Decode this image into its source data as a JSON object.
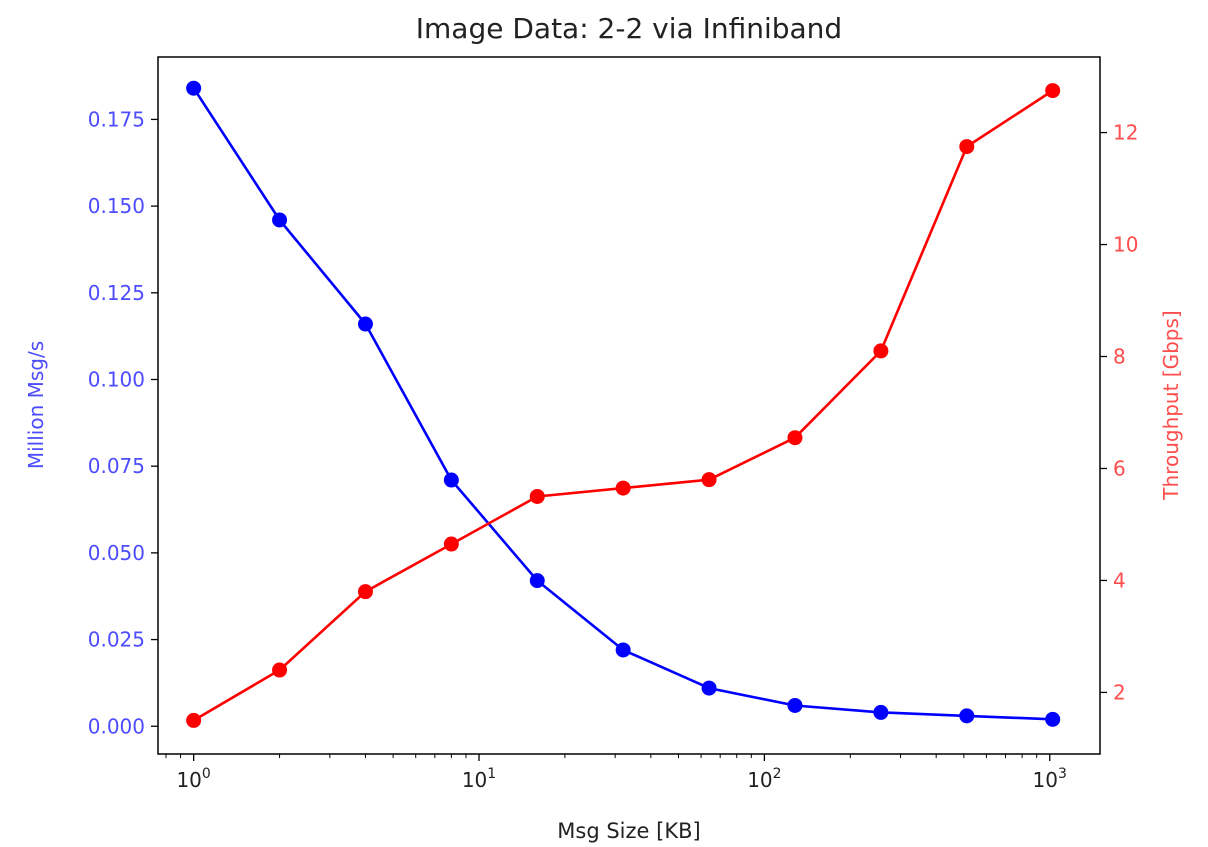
{
  "chart_data": {
    "type": "line",
    "title": "Image Data: 2-2 via Infiniband",
    "xlabel": "Msg Size [KB]",
    "ylabel_left": "Million Msg/s",
    "ylabel_right": "Throughput [Gbps]",
    "x_scale": "log",
    "x": [
      1,
      2,
      4,
      8,
      16,
      32,
      64,
      128,
      256,
      512,
      1024
    ],
    "xlim": [
      0.75,
      1500
    ],
    "x_tick_labels": [
      {
        "value": 1,
        "base": "10",
        "exp": "0"
      },
      {
        "value": 10,
        "base": "10",
        "exp": "1"
      },
      {
        "value": 100,
        "base": "10",
        "exp": "2"
      },
      {
        "value": 1000,
        "base": "10",
        "exp": "3"
      }
    ],
    "ylim_left": [
      -0.008,
      0.193
    ],
    "yticks_left": [
      "0.000",
      "0.025",
      "0.050",
      "0.075",
      "0.100",
      "0.125",
      "0.150",
      "0.175"
    ],
    "ylim_right": [
      0.9,
      13.35
    ],
    "yticks_right": [
      "2",
      "4",
      "6",
      "8",
      "10",
      "12"
    ],
    "grid": false,
    "series": [
      {
        "axis": "left",
        "color": "#0000ff",
        "values": [
          0.184,
          0.146,
          0.116,
          0.071,
          0.042,
          0.022,
          0.011,
          0.006,
          0.004,
          0.003,
          0.002
        ]
      },
      {
        "axis": "right",
        "color": "#ff0000",
        "values": [
          1.5,
          2.4,
          3.8,
          4.65,
          5.5,
          5.65,
          5.8,
          6.55,
          8.1,
          11.75,
          12.75
        ]
      }
    ]
  }
}
